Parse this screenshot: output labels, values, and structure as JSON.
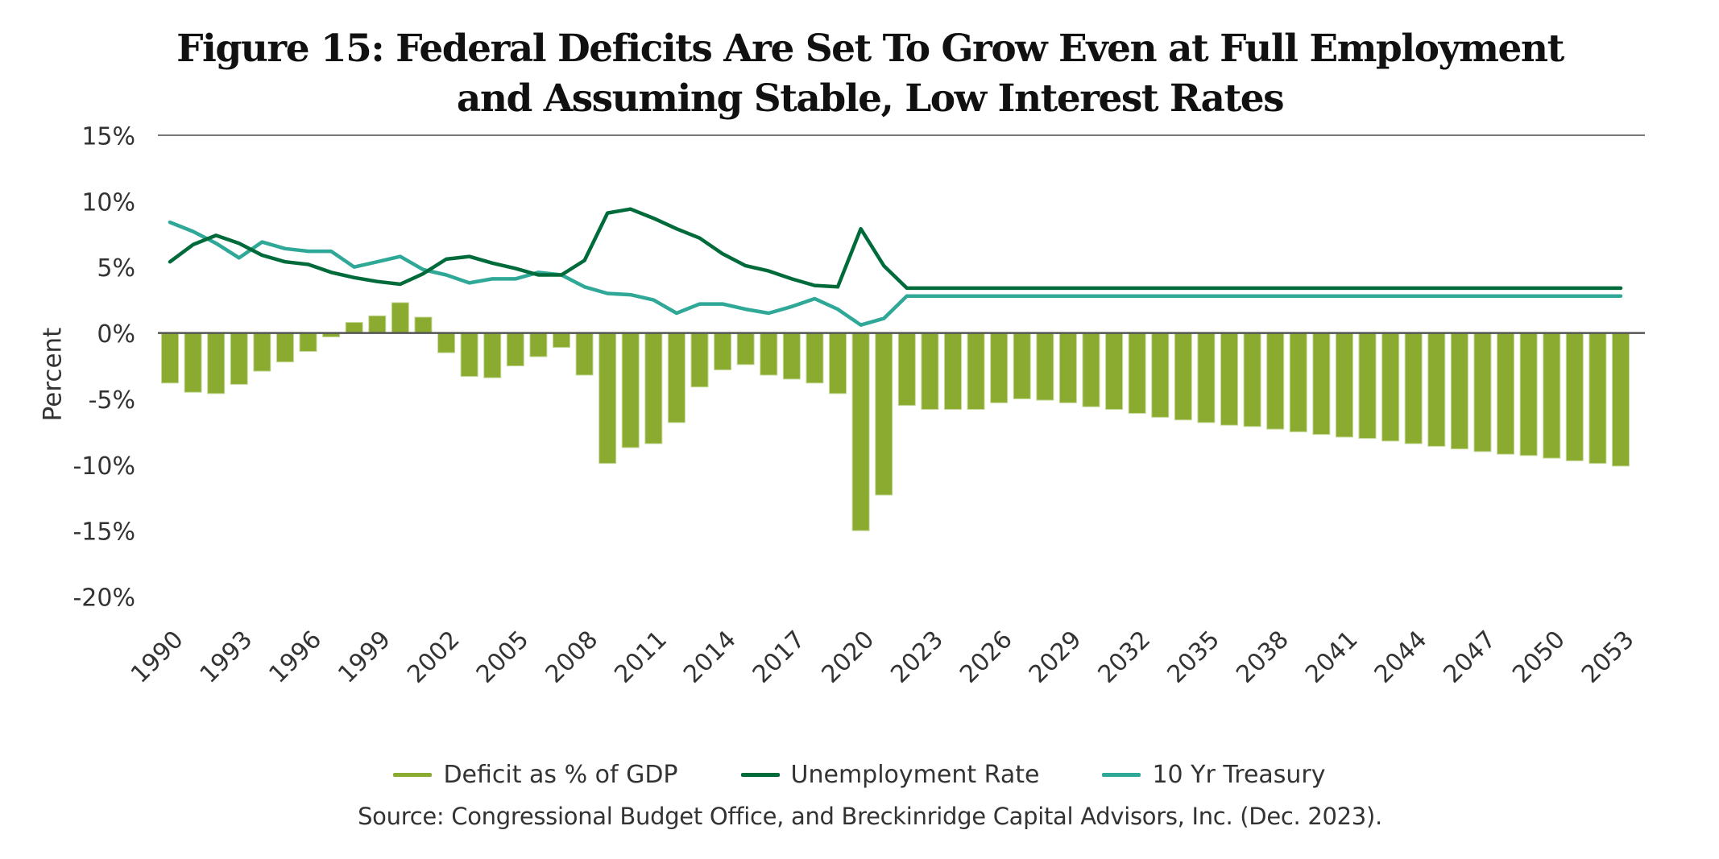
{
  "chart_data": {
    "type": "bar",
    "title_lines": [
      "Figure 15: Federal Deficits Are Set To Grow Even at Full Employment",
      "and Assuming Stable, Low Interest Rates"
    ],
    "title": "Figure 15: Federal Deficits Are Set To Grow Even at Full Employment and Assuming Stable, Low Interest Rates",
    "xlabel": "",
    "ylabel": "Percent",
    "ylim": [
      -20,
      15
    ],
    "yticks": [
      15,
      10,
      5,
      0,
      -5,
      -10,
      -15,
      -20
    ],
    "ytick_labels": [
      "15%",
      "10%",
      "5%",
      "0%",
      "-5%",
      "-10%",
      "-15%",
      "-20%"
    ],
    "xtick_labels": [
      "1990",
      "1993",
      "1996",
      "1999",
      "2002",
      "2005",
      "2008",
      "2011",
      "2014",
      "2017",
      "2020",
      "2023",
      "2026",
      "2029",
      "2032",
      "2035",
      "2038",
      "2041",
      "2044",
      "2047",
      "2050",
      "2053"
    ],
    "grid": false,
    "legend_position": "bottom",
    "x": [
      1990,
      1991,
      1992,
      1993,
      1994,
      1995,
      1996,
      1997,
      1998,
      1999,
      2000,
      2001,
      2002,
      2003,
      2004,
      2005,
      2006,
      2007,
      2008,
      2009,
      2010,
      2011,
      2012,
      2013,
      2014,
      2015,
      2016,
      2017,
      2018,
      2019,
      2020,
      2021,
      2022,
      2023,
      2024,
      2025,
      2026,
      2027,
      2028,
      2029,
      2030,
      2031,
      2032,
      2033,
      2034,
      2035,
      2036,
      2037,
      2038,
      2039,
      2040,
      2041,
      2042,
      2043,
      2044,
      2045,
      2046,
      2047,
      2048,
      2049,
      2050,
      2051,
      2052,
      2053
    ],
    "series": [
      {
        "name": "Deficit as % of GDP",
        "type": "bar",
        "color": "#8aab2f",
        "values": [
          -3.8,
          -4.5,
          -4.6,
          -3.9,
          -2.9,
          -2.2,
          -1.4,
          -0.3,
          0.8,
          1.3,
          2.3,
          1.2,
          -1.5,
          -3.3,
          -3.4,
          -2.5,
          -1.8,
          -1.1,
          -3.2,
          -9.9,
          -8.7,
          -8.4,
          -6.8,
          -4.1,
          -2.8,
          -2.4,
          -3.2,
          -3.5,
          -3.8,
          -4.6,
          -15.0,
          -12.3,
          -5.5,
          -5.8,
          -5.8,
          -5.8,
          -5.3,
          -5.0,
          -5.1,
          -5.3,
          -5.6,
          -5.8,
          -6.1,
          -6.4,
          -6.6,
          -6.8,
          -7.0,
          -7.1,
          -7.3,
          -7.5,
          -7.7,
          -7.9,
          -8.0,
          -8.2,
          -8.4,
          -8.6,
          -8.8,
          -9.0,
          -9.2,
          -9.3,
          -9.5,
          -9.7,
          -9.9,
          -10.1
        ]
      },
      {
        "name": "Unemployment Rate",
        "type": "line",
        "color": "#006b3a",
        "values": [
          5.4,
          6.7,
          7.4,
          6.8,
          5.9,
          5.4,
          5.2,
          4.6,
          4.2,
          3.9,
          3.7,
          4.5,
          5.6,
          5.8,
          5.3,
          4.9,
          4.4,
          4.4,
          5.5,
          9.1,
          9.4,
          8.7,
          7.9,
          7.2,
          6.0,
          5.1,
          4.7,
          4.1,
          3.6,
          3.5,
          7.9,
          5.1,
          3.4,
          3.4,
          3.4,
          3.4,
          3.4,
          3.4,
          3.4,
          3.4,
          3.4,
          3.4,
          3.4,
          3.4,
          3.4,
          3.4,
          3.4,
          3.4,
          3.4,
          3.4,
          3.4,
          3.4,
          3.4,
          3.4,
          3.4,
          3.4,
          3.4,
          3.4,
          3.4,
          3.4,
          3.4,
          3.4,
          3.4,
          3.4
        ]
      },
      {
        "name": "10 Yr Treasury",
        "type": "line",
        "color": "#2fa898",
        "values": [
          8.4,
          7.7,
          6.8,
          5.7,
          6.9,
          6.4,
          6.2,
          6.2,
          5.0,
          5.4,
          5.8,
          4.8,
          4.4,
          3.8,
          4.1,
          4.1,
          4.6,
          4.4,
          3.5,
          3.0,
          2.9,
          2.5,
          1.5,
          2.2,
          2.2,
          1.8,
          1.5,
          2.0,
          2.6,
          1.8,
          0.6,
          1.1,
          2.8,
          2.8,
          2.8,
          2.8,
          2.8,
          2.8,
          2.8,
          2.8,
          2.8,
          2.8,
          2.8,
          2.8,
          2.8,
          2.8,
          2.8,
          2.8,
          2.8,
          2.8,
          2.8,
          2.8,
          2.8,
          2.8,
          2.8,
          2.8,
          2.8,
          2.8,
          2.8,
          2.8,
          2.8,
          2.8,
          2.8,
          2.8
        ]
      }
    ],
    "source": "Source: Congressional Budget Office, and Breckinridge Capital Advisors, Inc. (Dec. 2023)."
  },
  "colors": {
    "axis_line": "#555555",
    "tick_text": "#333333"
  }
}
